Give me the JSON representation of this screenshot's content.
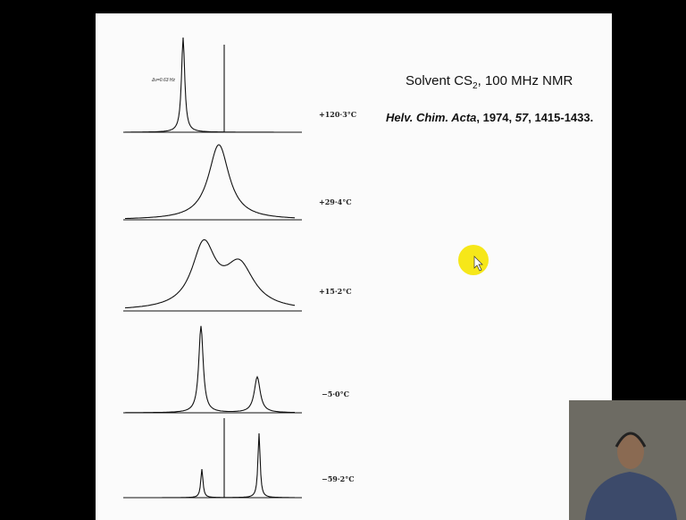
{
  "slide": {
    "heading": {
      "parts": [
        "Solvent CS",
        "2",
        ", 100 MHz NMR"
      ]
    },
    "citation": {
      "parts": [
        "Helv. Chim. Acta",
        ", 1974, ",
        "57",
        ", 1415-1433."
      ]
    },
    "temperatures": [
      "+120·3°C",
      "+29·4°C",
      "+15·2°C",
      "−5·0°C",
      "−59·2°C"
    ],
    "annotation": "Δν=0.63 Hz"
  }
}
